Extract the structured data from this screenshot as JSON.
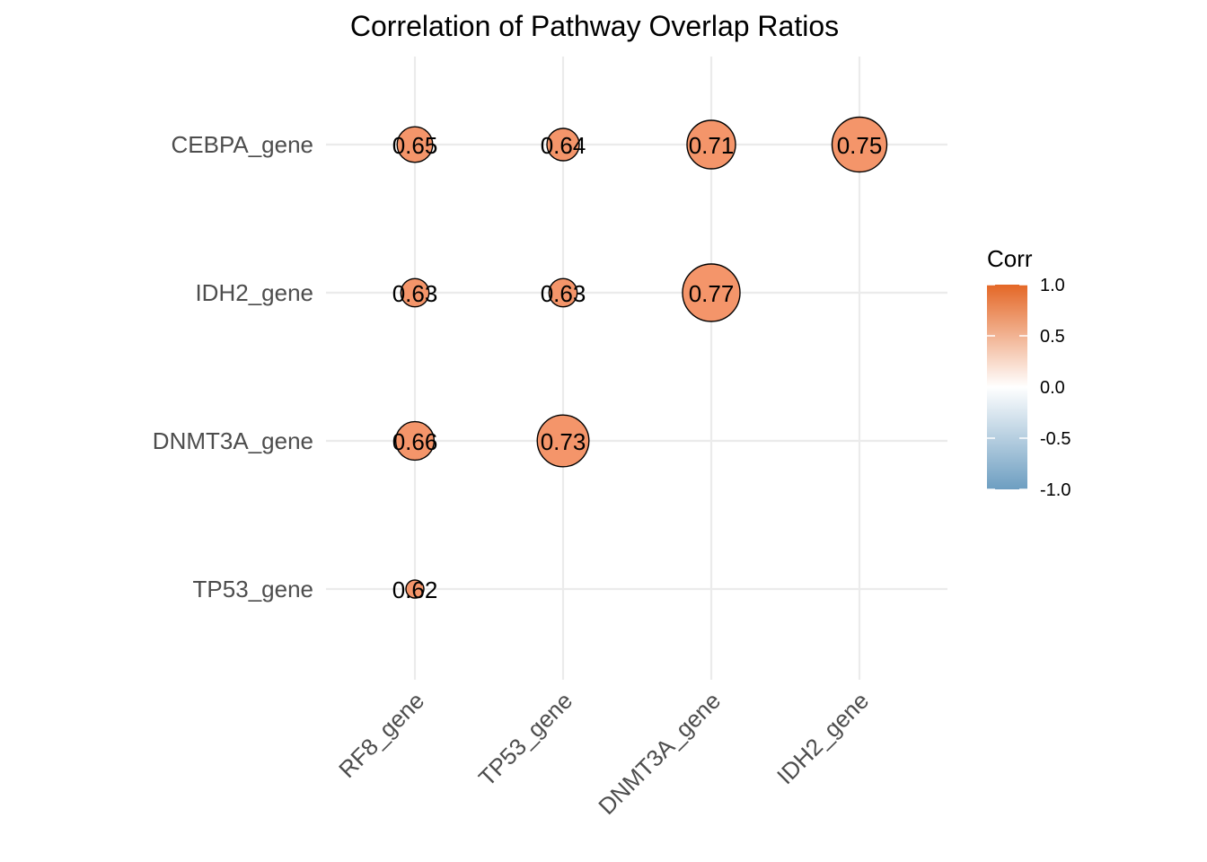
{
  "chart_data": {
    "type": "scatter",
    "title": "Correlation of Pathway Overlap Ratios",
    "x_categories": [
      "RF8_gene",
      "TP53_gene",
      "DNMT3A_gene",
      "IDH2_gene"
    ],
    "y_categories": [
      "CEBPA_gene",
      "IDH2_gene",
      "DNMT3A_gene",
      "TP53_gene"
    ],
    "cells": [
      {
        "x": "RF8_gene",
        "y": "CEBPA_gene",
        "value": 0.65,
        "label": "0.65"
      },
      {
        "x": "TP53_gene",
        "y": "CEBPA_gene",
        "value": 0.64,
        "label": "0.64"
      },
      {
        "x": "DNMT3A_gene",
        "y": "CEBPA_gene",
        "value": 0.71,
        "label": "0.71"
      },
      {
        "x": "IDH2_gene",
        "y": "CEBPA_gene",
        "value": 0.75,
        "label": "0.75"
      },
      {
        "x": "RF8_gene",
        "y": "IDH2_gene",
        "value": 0.63,
        "label": "0.63"
      },
      {
        "x": "TP53_gene",
        "y": "IDH2_gene",
        "value": 0.63,
        "label": "0.63"
      },
      {
        "x": "DNMT3A_gene",
        "y": "IDH2_gene",
        "value": 0.77,
        "label": "0.77"
      },
      {
        "x": "RF8_gene",
        "y": "DNMT3A_gene",
        "value": 0.66,
        "label": "0.66"
      },
      {
        "x": "TP53_gene",
        "y": "DNMT3A_gene",
        "value": 0.73,
        "label": "0.73"
      },
      {
        "x": "RF8_gene",
        "y": "TP53_gene",
        "value": 0.62,
        "label": "0.62"
      }
    ],
    "legend": {
      "title": "Corr",
      "ticks": [
        "1.0",
        "0.5",
        "0.0",
        "-0.5",
        "-1.0"
      ],
      "tick_values": [
        1.0,
        0.5,
        0.0,
        -0.5,
        -1.0
      ],
      "colors": {
        "low": "#6d9ec1",
        "mid": "#ffffff",
        "high": "#e46726"
      },
      "placement": "right"
    },
    "grid": true,
    "point_fill": "#f4956a",
    "point_stroke": "#000000"
  }
}
